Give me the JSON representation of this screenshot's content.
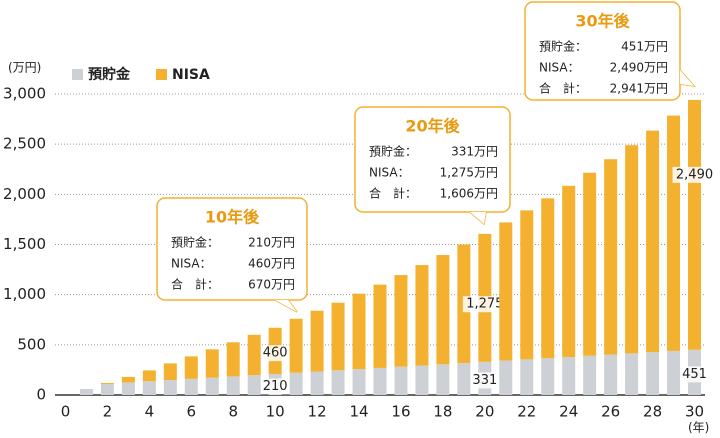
{
  "chart_data": {
    "type": "stacked_bar",
    "y_label": "(万円)",
    "x_label": "(年)",
    "x": [
      1,
      2,
      3,
      4,
      5,
      6,
      7,
      8,
      9,
      10,
      11,
      12,
      13,
      14,
      15,
      16,
      17,
      18,
      19,
      20,
      21,
      22,
      23,
      24,
      25,
      26,
      27,
      28,
      29,
      30
    ],
    "series": [
      {
        "name": "預貯金",
        "color": "#cdd1d5",
        "values": [
          60,
          110,
          125,
          137,
          149,
          161,
          173,
          185,
          197,
          210,
          222,
          234,
          246,
          258,
          270,
          282,
          294,
          306,
          318,
          331,
          343,
          355,
          367,
          379,
          391,
          403,
          415,
          427,
          439,
          451
        ],
        "value_labels": [
          null,
          null,
          null,
          null,
          null,
          null,
          null,
          null,
          null,
          "210",
          null,
          null,
          null,
          null,
          null,
          null,
          null,
          null,
          null,
          "331",
          null,
          null,
          null,
          null,
          null,
          null,
          null,
          null,
          null,
          "451"
        ]
      },
      {
        "name": "NISA",
        "color": "#f3b12f",
        "values": [
          0,
          10,
          55,
          108,
          166,
          224,
          282,
          340,
          403,
          460,
          538,
          606,
          674,
          752,
          830,
          913,
          1001,
          1089,
          1182,
          1275,
          1377,
          1485,
          1593,
          1706,
          1824,
          1947,
          2075,
          2208,
          2346,
          2490
        ],
        "value_labels": [
          null,
          null,
          null,
          null,
          null,
          null,
          null,
          null,
          null,
          "460",
          null,
          null,
          null,
          null,
          null,
          null,
          null,
          null,
          null,
          "1,275",
          null,
          null,
          null,
          null,
          null,
          null,
          null,
          null,
          null,
          "2,490"
        ]
      }
    ],
    "xlim": [
      -0.5,
      30.5
    ],
    "xticks": [
      0,
      2,
      4,
      6,
      8,
      10,
      12,
      14,
      16,
      18,
      20,
      22,
      24,
      26,
      28,
      30
    ],
    "ylim": [
      0,
      3000
    ],
    "yticks": [
      0,
      500,
      {
        "value": 1000,
        "label": "1,000"
      },
      {
        "value": 1500,
        "label": "1,500"
      },
      {
        "value": 2000,
        "label": "2,000"
      },
      {
        "value": 2500,
        "label": "2,500"
      },
      {
        "value": 3000,
        "label": "3,000"
      }
    ],
    "grid": true,
    "legend": "top-left",
    "callouts": [
      {
        "title": "10年後",
        "rows": [
          {
            "label": "預貯金：",
            "value": "210万円"
          },
          {
            "label": "NISA：",
            "value": "460万円"
          },
          {
            "label": "合　計：",
            "value": "670万円"
          }
        ]
      },
      {
        "title": "20年後",
        "rows": [
          {
            "label": "預貯金：",
            "value": "331万円"
          },
          {
            "label": "NISA：",
            "value": "1,275万円"
          },
          {
            "label": "合　計：",
            "value": "1,606万円"
          }
        ]
      },
      {
        "title": "30年後",
        "rows": [
          {
            "label": "預貯金：",
            "value": "451万円"
          },
          {
            "label": "NISA：",
            "value": "2,490万円"
          },
          {
            "label": "合　計：",
            "value": "2,941万円"
          }
        ]
      }
    ]
  }
}
